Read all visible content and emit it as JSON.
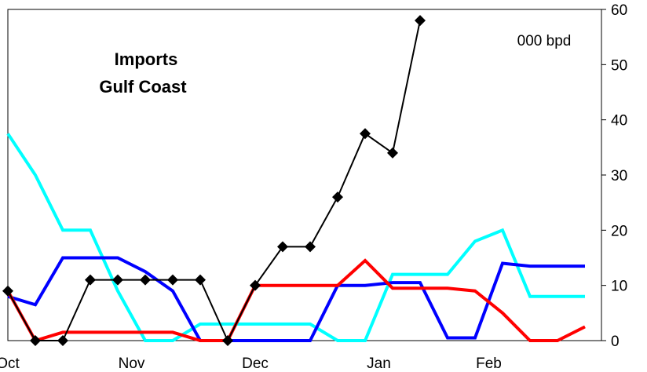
{
  "chart_data": {
    "type": "line",
    "title": [
      "Imports",
      "Gulf Coast"
    ],
    "unit_label": "000 bpd",
    "x": [
      0,
      1,
      2,
      3,
      4,
      5,
      6,
      7,
      8,
      9,
      10,
      11,
      12,
      13,
      14,
      15,
      16,
      17,
      18,
      19,
      20,
      21
    ],
    "xticks": [
      {
        "label": "Oct",
        "x": 0
      },
      {
        "label": "Nov",
        "x": 4.5
      },
      {
        "label": "Dec",
        "x": 9
      },
      {
        "label": "Jan",
        "x": 13.5
      },
      {
        "label": "Feb",
        "x": 17.5
      }
    ],
    "ylim": [
      0,
      60
    ],
    "yticks": [
      0,
      10,
      20,
      30,
      40,
      50,
      60
    ],
    "y_axis_side": "right",
    "grid": false,
    "legend": "none",
    "series": [
      {
        "color": "#00ffff",
        "marker": "none",
        "values": [
          37.5,
          30,
          20,
          20,
          9,
          0,
          0,
          3,
          3,
          3,
          3,
          3,
          0,
          0,
          12,
          12,
          12,
          18,
          20,
          8,
          8,
          8
        ]
      },
      {
        "color": "#0000ff",
        "marker": "none",
        "values": [
          8,
          6.5,
          15,
          15,
          15,
          12.5,
          9,
          0,
          0,
          0,
          0,
          0,
          10,
          10,
          10.5,
          10.5,
          0.5,
          0.5,
          14,
          13.5,
          13.5,
          13.5
        ]
      },
      {
        "color": "#ff0000",
        "marker": "none",
        "values": [
          9,
          0,
          1.5,
          1.5,
          1.5,
          1.5,
          1.5,
          0,
          0,
          10,
          10,
          10,
          10,
          14.5,
          9.5,
          9.5,
          9.5,
          9,
          5,
          0,
          0,
          2.5
        ]
      },
      {
        "color": "#000000",
        "marker": "diamond",
        "values": [
          9,
          0,
          0,
          11,
          11,
          11,
          11,
          11,
          0,
          10,
          17,
          17,
          26,
          37.5,
          34,
          58,
          null,
          null,
          null,
          null,
          null,
          null
        ]
      }
    ]
  }
}
